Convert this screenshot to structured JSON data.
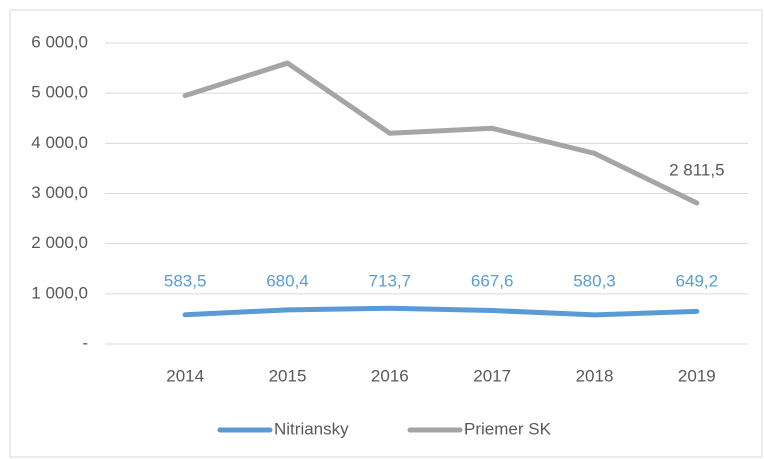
{
  "chart_data": {
    "type": "line",
    "categories": [
      "2014",
      "2015",
      "2016",
      "2017",
      "2018",
      "2019"
    ],
    "series": [
      {
        "name": "Nitriansky",
        "color": "#5b9bd5",
        "values": [
          583.5,
          680.4,
          713.7,
          667.6,
          580.3,
          649.2
        ],
        "value_labels": [
          "583,5",
          "680,4",
          "713,7",
          "667,6",
          "580,3",
          "649,2"
        ]
      },
      {
        "name": "Priemer SK",
        "color": "#a5a5a5",
        "values": [
          4950,
          5600,
          4200,
          4300,
          3800,
          2811.5
        ],
        "value_labels": [
          null,
          null,
          null,
          null,
          null,
          "2 811,5"
        ]
      }
    ],
    "ylim": [
      0,
      6000
    ],
    "yticks": [
      {
        "value": 0,
        "label": "-"
      },
      {
        "value": 1000,
        "label": "1 000,0"
      },
      {
        "value": 2000,
        "label": "2 000,0"
      },
      {
        "value": 3000,
        "label": "3 000,0"
      },
      {
        "value": 4000,
        "label": "4 000,0"
      },
      {
        "value": 5000,
        "label": "5 000,0"
      },
      {
        "value": 6000,
        "label": "6 000,0"
      }
    ],
    "grid": true,
    "legend": "bottom"
  }
}
